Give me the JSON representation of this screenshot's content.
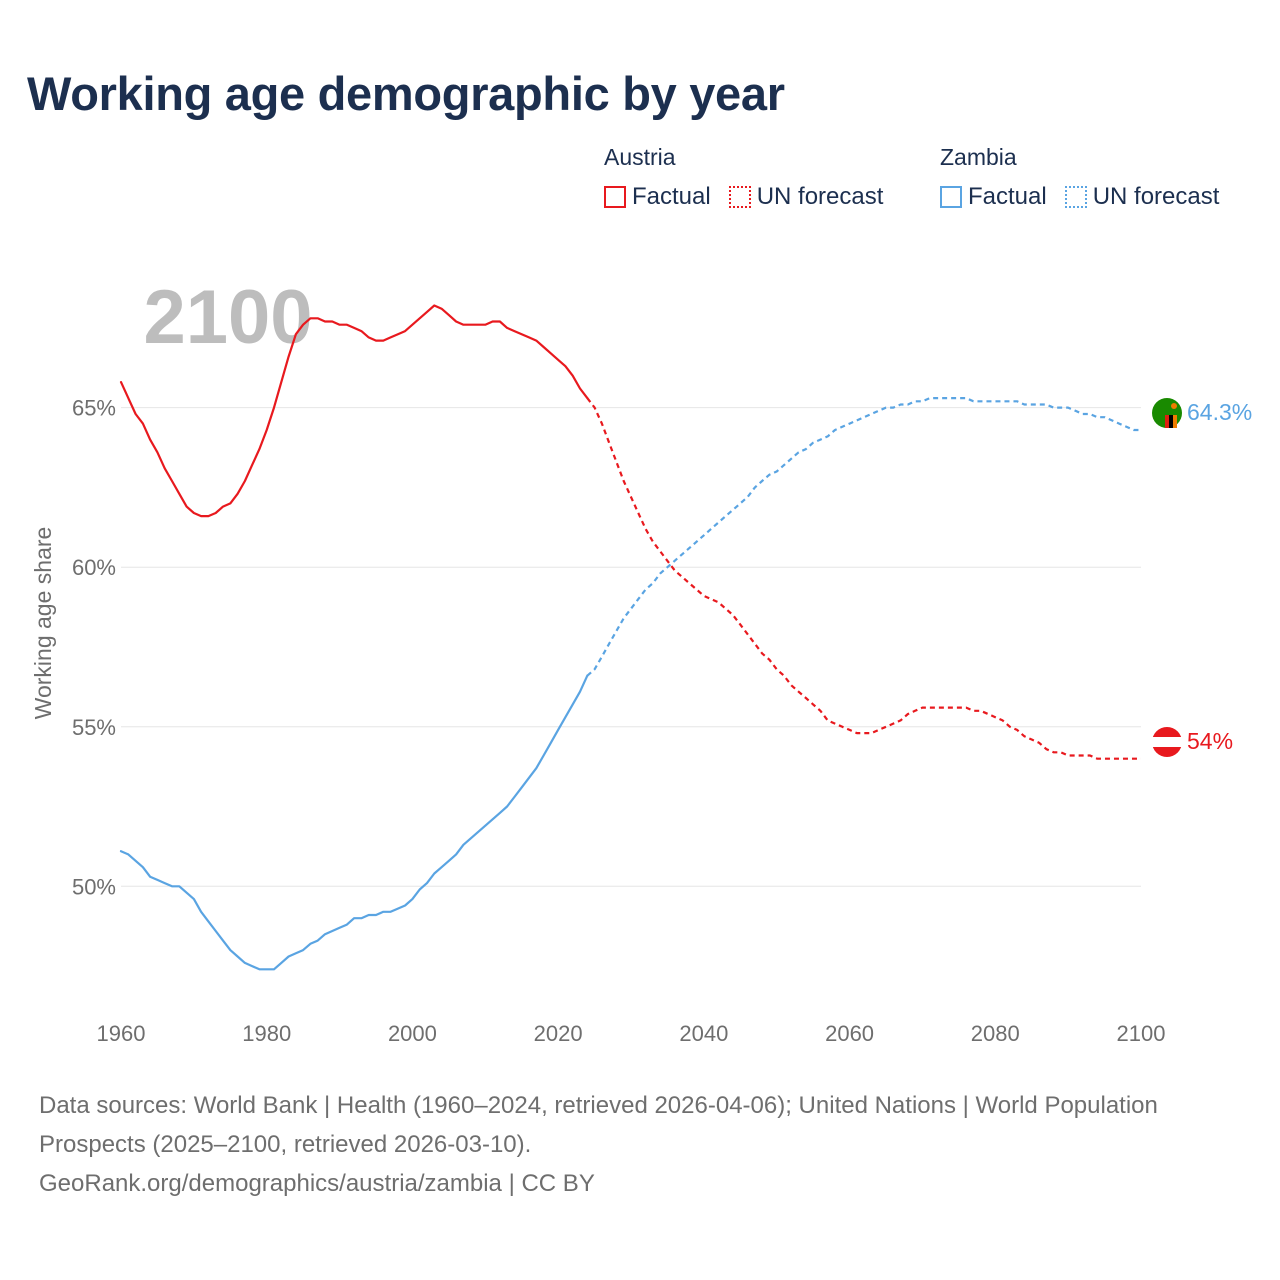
{
  "title": "Working age demographic by year",
  "legend": {
    "groups": [
      {
        "name": "Austria",
        "factual_label": "Factual",
        "forecast_label": "UN forecast",
        "color": "#e8191e"
      },
      {
        "name": "Zambia",
        "factual_label": "Factual",
        "forecast_label": "UN forecast",
        "color": "#5aa4e2"
      }
    ]
  },
  "chart_data": {
    "type": "line",
    "title": "Working age demographic by year",
    "xlabel": "",
    "ylabel": "Working age share",
    "xlim": [
      1960,
      2100
    ],
    "ylim": [
      46.5,
      69
    ],
    "x_ticks": [
      "1960",
      "1980",
      "2000",
      "2020",
      "2040",
      "2060",
      "2080",
      "2100"
    ],
    "y_ticks": [
      "50%",
      "55%",
      "60%",
      "65%"
    ],
    "grid": true,
    "year_watermark": "2100",
    "forecast_start": 2024,
    "series": [
      {
        "name": "Austria",
        "color": "#e8191e",
        "end_label": "54%",
        "points": [
          [
            1960,
            65.8
          ],
          [
            1962,
            64.8
          ],
          [
            1963,
            64.5
          ],
          [
            1964,
            64
          ],
          [
            1965,
            63.6
          ],
          [
            1966,
            63.1
          ],
          [
            1967,
            62.7
          ],
          [
            1968,
            62.3
          ],
          [
            1969,
            61.9
          ],
          [
            1970,
            61.7
          ],
          [
            1971,
            61.6
          ],
          [
            1972,
            61.6
          ],
          [
            1973,
            61.7
          ],
          [
            1974,
            61.9
          ],
          [
            1975,
            62
          ],
          [
            1976,
            62.3
          ],
          [
            1977,
            62.7
          ],
          [
            1978,
            63.2
          ],
          [
            1979,
            63.7
          ],
          [
            1980,
            64.3
          ],
          [
            1981,
            65
          ],
          [
            1982,
            65.8
          ],
          [
            1983,
            66.6
          ],
          [
            1984,
            67.3
          ],
          [
            1985,
            67.6
          ],
          [
            1986,
            67.8
          ],
          [
            1987,
            67.8
          ],
          [
            1988,
            67.7
          ],
          [
            1989,
            67.7
          ],
          [
            1990,
            67.6
          ],
          [
            1991,
            67.6
          ],
          [
            1992,
            67.5
          ],
          [
            1993,
            67.4
          ],
          [
            1994,
            67.2
          ],
          [
            1995,
            67.1
          ],
          [
            1996,
            67.1
          ],
          [
            1997,
            67.2
          ],
          [
            1998,
            67.3
          ],
          [
            1999,
            67.4
          ],
          [
            2000,
            67.6
          ],
          [
            2001,
            67.8
          ],
          [
            2002,
            68
          ],
          [
            2003,
            68.2
          ],
          [
            2004,
            68.1
          ],
          [
            2005,
            67.9
          ],
          [
            2006,
            67.7
          ],
          [
            2007,
            67.6
          ],
          [
            2008,
            67.6
          ],
          [
            2009,
            67.6
          ],
          [
            2010,
            67.6
          ],
          [
            2011,
            67.7
          ],
          [
            2012,
            67.7
          ],
          [
            2013,
            67.5
          ],
          [
            2014,
            67.4
          ],
          [
            2015,
            67.3
          ],
          [
            2016,
            67.2
          ],
          [
            2017,
            67.1
          ],
          [
            2018,
            66.9
          ],
          [
            2019,
            66.7
          ],
          [
            2020,
            66.5
          ],
          [
            2021,
            66.3
          ],
          [
            2022,
            66
          ],
          [
            2023,
            65.6
          ],
          [
            2024,
            65.3
          ],
          [
            2025,
            65
          ],
          [
            2026,
            64.5
          ],
          [
            2027,
            63.9
          ],
          [
            2028,
            63.3
          ],
          [
            2029,
            62.7
          ],
          [
            2030,
            62.2
          ],
          [
            2031,
            61.7
          ],
          [
            2032,
            61.2
          ],
          [
            2033,
            60.8
          ],
          [
            2034,
            60.5
          ],
          [
            2035,
            60.2
          ],
          [
            2036,
            59.9
          ],
          [
            2037,
            59.7
          ],
          [
            2038,
            59.5
          ],
          [
            2039,
            59.3
          ],
          [
            2040,
            59.1
          ],
          [
            2041,
            59
          ],
          [
            2042,
            58.9
          ],
          [
            2043,
            58.7
          ],
          [
            2044,
            58.5
          ],
          [
            2045,
            58.2
          ],
          [
            2046,
            57.9
          ],
          [
            2047,
            57.6
          ],
          [
            2048,
            57.3
          ],
          [
            2049,
            57.1
          ],
          [
            2050,
            56.8
          ],
          [
            2051,
            56.6
          ],
          [
            2052,
            56.3
          ],
          [
            2053,
            56.1
          ],
          [
            2054,
            55.9
          ],
          [
            2055,
            55.7
          ],
          [
            2056,
            55.5
          ],
          [
            2057,
            55.2
          ],
          [
            2058,
            55.1
          ],
          [
            2059,
            55
          ],
          [
            2060,
            54.9
          ],
          [
            2061,
            54.8
          ],
          [
            2062,
            54.8
          ],
          [
            2063,
            54.8
          ],
          [
            2064,
            54.9
          ],
          [
            2065,
            55
          ],
          [
            2066,
            55.1
          ],
          [
            2067,
            55.2
          ],
          [
            2068,
            55.4
          ],
          [
            2069,
            55.5
          ],
          [
            2070,
            55.6
          ],
          [
            2071,
            55.6
          ],
          [
            2072,
            55.6
          ],
          [
            2073,
            55.6
          ],
          [
            2074,
            55.6
          ],
          [
            2075,
            55.6
          ],
          [
            2076,
            55.6
          ],
          [
            2077,
            55.5
          ],
          [
            2078,
            55.5
          ],
          [
            2079,
            55.4
          ],
          [
            2080,
            55.3
          ],
          [
            2081,
            55.2
          ],
          [
            2082,
            55
          ],
          [
            2083,
            54.9
          ],
          [
            2084,
            54.7
          ],
          [
            2085,
            54.6
          ],
          [
            2086,
            54.5
          ],
          [
            2087,
            54.3
          ],
          [
            2088,
            54.2
          ],
          [
            2089,
            54.2
          ],
          [
            2090,
            54.1
          ],
          [
            2091,
            54.1
          ],
          [
            2092,
            54.1
          ],
          [
            2093,
            54.1
          ],
          [
            2094,
            54
          ],
          [
            2095,
            54
          ],
          [
            2096,
            54
          ],
          [
            2097,
            54
          ],
          [
            2098,
            54
          ],
          [
            2099,
            54
          ],
          [
            2100,
            54
          ]
        ]
      },
      {
        "name": "Zambia",
        "color": "#5aa4e2",
        "end_label": "64.3%",
        "points": [
          [
            1960,
            51.1
          ],
          [
            1961,
            51
          ],
          [
            1962,
            50.8
          ],
          [
            1963,
            50.6
          ],
          [
            1964,
            50.3
          ],
          [
            1965,
            50.2
          ],
          [
            1966,
            50.1
          ],
          [
            1967,
            50
          ],
          [
            1968,
            50
          ],
          [
            1969,
            49.8
          ],
          [
            1970,
            49.6
          ],
          [
            1971,
            49.2
          ],
          [
            1972,
            48.9
          ],
          [
            1973,
            48.6
          ],
          [
            1974,
            48.3
          ],
          [
            1975,
            48
          ],
          [
            1976,
            47.8
          ],
          [
            1977,
            47.6
          ],
          [
            1978,
            47.5
          ],
          [
            1979,
            47.4
          ],
          [
            1980,
            47.4
          ],
          [
            1981,
            47.4
          ],
          [
            1982,
            47.6
          ],
          [
            1983,
            47.8
          ],
          [
            1984,
            47.9
          ],
          [
            1985,
            48
          ],
          [
            1986,
            48.2
          ],
          [
            1987,
            48.3
          ],
          [
            1988,
            48.5
          ],
          [
            1989,
            48.6
          ],
          [
            1990,
            48.7
          ],
          [
            1991,
            48.8
          ],
          [
            1992,
            49
          ],
          [
            1993,
            49
          ],
          [
            1994,
            49.1
          ],
          [
            1995,
            49.1
          ],
          [
            1996,
            49.2
          ],
          [
            1997,
            49.2
          ],
          [
            1998,
            49.3
          ],
          [
            1999,
            49.4
          ],
          [
            2000,
            49.6
          ],
          [
            2001,
            49.9
          ],
          [
            2002,
            50.1
          ],
          [
            2003,
            50.4
          ],
          [
            2004,
            50.6
          ],
          [
            2005,
            50.8
          ],
          [
            2006,
            51
          ],
          [
            2007,
            51.3
          ],
          [
            2008,
            51.5
          ],
          [
            2009,
            51.7
          ],
          [
            2010,
            51.9
          ],
          [
            2011,
            52.1
          ],
          [
            2012,
            52.3
          ],
          [
            2013,
            52.5
          ],
          [
            2014,
            52.8
          ],
          [
            2015,
            53.1
          ],
          [
            2016,
            53.4
          ],
          [
            2017,
            53.7
          ],
          [
            2018,
            54.1
          ],
          [
            2019,
            54.5
          ],
          [
            2020,
            54.9
          ],
          [
            2021,
            55.3
          ],
          [
            2022,
            55.7
          ],
          [
            2023,
            56.1
          ],
          [
            2024,
            56.6
          ],
          [
            2025,
            56.8
          ],
          [
            2026,
            57.2
          ],
          [
            2027,
            57.6
          ],
          [
            2028,
            58
          ],
          [
            2029,
            58.4
          ],
          [
            2030,
            58.7
          ],
          [
            2031,
            59
          ],
          [
            2032,
            59.3
          ],
          [
            2033,
            59.5
          ],
          [
            2034,
            59.8
          ],
          [
            2035,
            60
          ],
          [
            2036,
            60.2
          ],
          [
            2037,
            60.4
          ],
          [
            2038,
            60.6
          ],
          [
            2039,
            60.8
          ],
          [
            2040,
            61
          ],
          [
            2041,
            61.2
          ],
          [
            2042,
            61.4
          ],
          [
            2043,
            61.6
          ],
          [
            2044,
            61.8
          ],
          [
            2045,
            62
          ],
          [
            2046,
            62.2
          ],
          [
            2047,
            62.5
          ],
          [
            2048,
            62.7
          ],
          [
            2049,
            62.9
          ],
          [
            2050,
            63
          ],
          [
            2051,
            63.2
          ],
          [
            2052,
            63.4
          ],
          [
            2053,
            63.6
          ],
          [
            2054,
            63.7
          ],
          [
            2055,
            63.9
          ],
          [
            2056,
            64
          ],
          [
            2057,
            64.1
          ],
          [
            2058,
            64.3
          ],
          [
            2059,
            64.4
          ],
          [
            2060,
            64.5
          ],
          [
            2061,
            64.6
          ],
          [
            2062,
            64.7
          ],
          [
            2063,
            64.8
          ],
          [
            2064,
            64.9
          ],
          [
            2065,
            65
          ],
          [
            2066,
            65
          ],
          [
            2067,
            65.1
          ],
          [
            2068,
            65.1
          ],
          [
            2069,
            65.2
          ],
          [
            2070,
            65.2
          ],
          [
            2071,
            65.3
          ],
          [
            2072,
            65.3
          ],
          [
            2073,
            65.3
          ],
          [
            2074,
            65.3
          ],
          [
            2075,
            65.3
          ],
          [
            2076,
            65.3
          ],
          [
            2077,
            65.2
          ],
          [
            2078,
            65.2
          ],
          [
            2079,
            65.2
          ],
          [
            2080,
            65.2
          ],
          [
            2081,
            65.2
          ],
          [
            2082,
            65.2
          ],
          [
            2083,
            65.2
          ],
          [
            2084,
            65.1
          ],
          [
            2085,
            65.1
          ],
          [
            2086,
            65.1
          ],
          [
            2087,
            65.1
          ],
          [
            2088,
            65
          ],
          [
            2089,
            65
          ],
          [
            2090,
            65
          ],
          [
            2091,
            64.9
          ],
          [
            2092,
            64.8
          ],
          [
            2093,
            64.8
          ],
          [
            2094,
            64.7
          ],
          [
            2095,
            64.7
          ],
          [
            2096,
            64.6
          ],
          [
            2097,
            64.5
          ],
          [
            2098,
            64.4
          ],
          [
            2099,
            64.3
          ],
          [
            2100,
            64.3
          ]
        ]
      }
    ]
  },
  "footer": {
    "line1": "Data sources: World Bank | Health (1960–2024, retrieved 2026-04-06); United Nations | World Population Prospects (2025–2100, retrieved 2026-03-10).",
    "line2": "GeoRank.org/demographics/austria/zambia | CC BY"
  },
  "colors": {
    "title": "#1c2f4f",
    "axis_text": "#6e6e6e",
    "grid": "#e6e6e6",
    "watermark": "#bdbdbd"
  }
}
